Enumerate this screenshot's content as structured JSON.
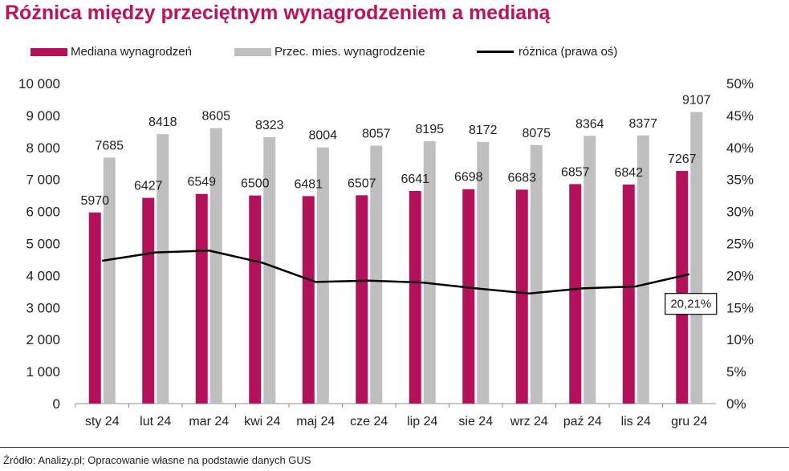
{
  "title": "Różnica między przeciętnym wynagrodzeniem a medianą",
  "source": "Źródło: Analizy.pl; Opracowanie własne na podstawie danych GUS",
  "chart_data": {
    "type": "bar",
    "categories": [
      "sty 24",
      "lut 24",
      "mar 24",
      "kwi 24",
      "maj 24",
      "cze 24",
      "lip 24",
      "sie 24",
      "wrz 24",
      "paź 24",
      "lis 24",
      "gru 24"
    ],
    "series": [
      {
        "name": "Mediana wynagrodzeń",
        "type": "bar",
        "color": "#b5105a",
        "values": [
          5970,
          6427,
          6549,
          6500,
          6481,
          6507,
          6641,
          6698,
          6683,
          6857,
          6842,
          7267
        ],
        "labels": [
          "5970",
          "6427",
          "6549",
          "6500",
          "6481",
          "6507",
          "6641",
          "6698",
          "6683",
          "6857",
          "6842",
          "7267"
        ]
      },
      {
        "name": "Przec. mies. wynagrodzenie",
        "type": "bar",
        "color": "#bfbfbf",
        "values": [
          7685,
          8418,
          8605,
          8323,
          8004,
          8057,
          8195,
          8172,
          8075,
          8364,
          8377,
          9107
        ],
        "labels": [
          "7685",
          "8418",
          "8605",
          "8323",
          "8004",
          "8057",
          "8195",
          "8172",
          "8075",
          "8364",
          "8377",
          "9107"
        ]
      },
      {
        "name": "różnica (prawa oś)",
        "type": "line",
        "axis": "right",
        "color": "#000000",
        "values": [
          22.3,
          23.6,
          23.9,
          22.0,
          19.0,
          19.2,
          18.9,
          18.0,
          17.2,
          18.0,
          18.3,
          20.21
        ]
      }
    ],
    "y_left": {
      "range": [
        0,
        10000
      ],
      "ticks": [
        "0",
        "1 000",
        "2 000",
        "3 000",
        "4 000",
        "5 000",
        "6 000",
        "7 000",
        "8 000",
        "9 000",
        "10 000"
      ]
    },
    "y_right": {
      "range": [
        0,
        50
      ],
      "ticks": [
        "0%",
        "5%",
        "10%",
        "15%",
        "20%",
        "25%",
        "30%",
        "35%",
        "40%",
        "45%",
        "50%"
      ]
    },
    "annotation": "20,21%",
    "grid": false,
    "legend_position": "top"
  }
}
